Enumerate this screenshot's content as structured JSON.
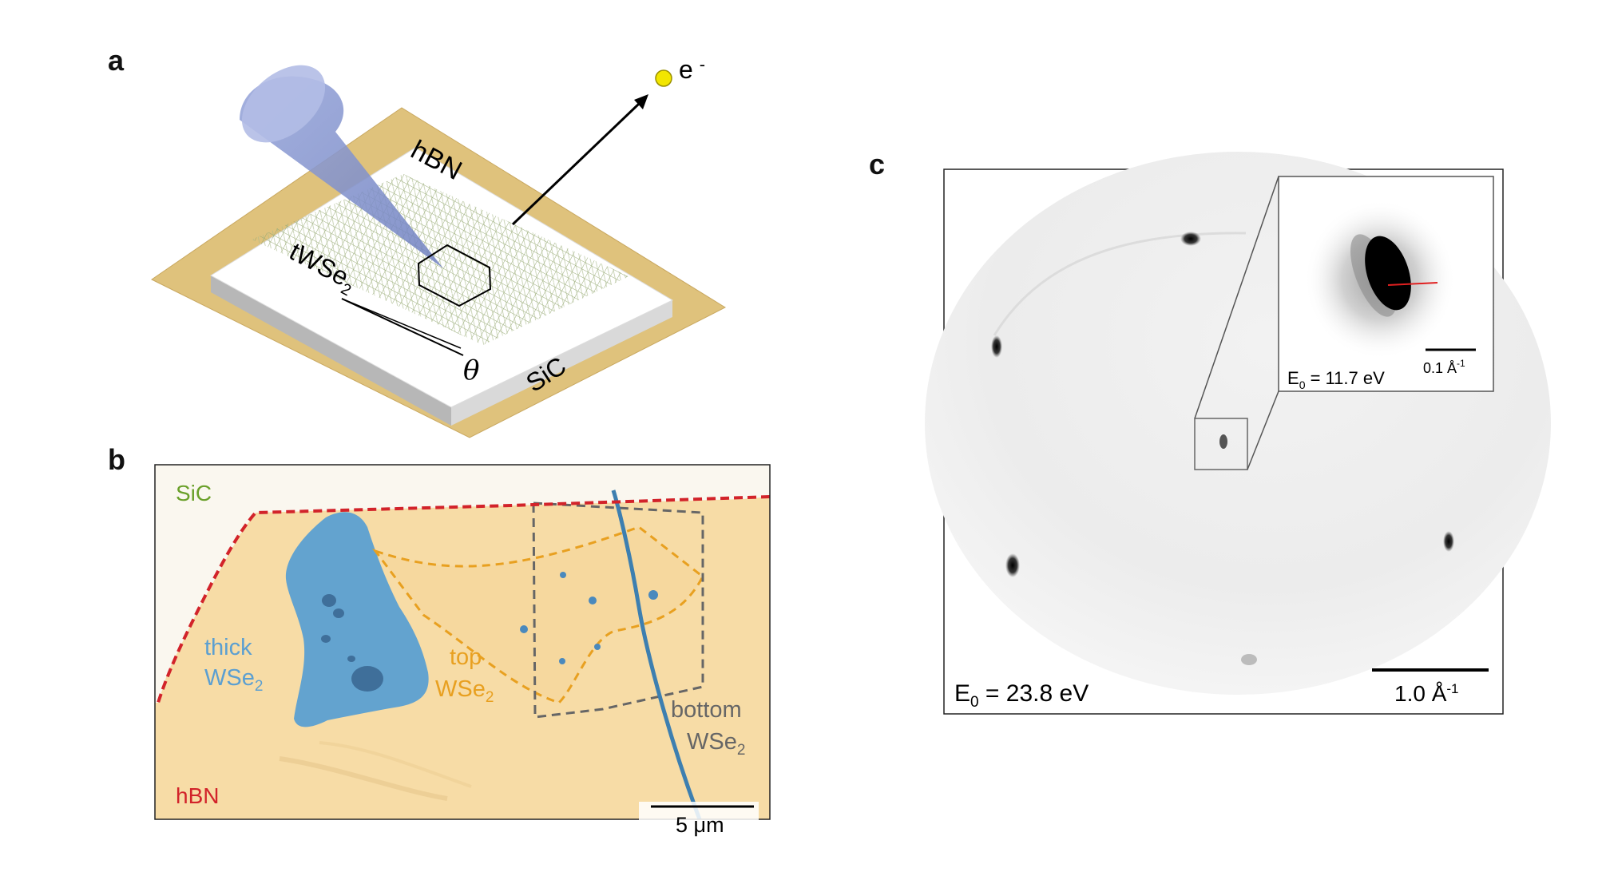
{
  "figure": {
    "panel_a": {
      "letter": "a",
      "labels": {
        "hbn": "hBN",
        "twse2_main": "tWSe",
        "twse2_sub": "2",
        "theta": "θ",
        "sic": "SiC",
        "electron_main": "e",
        "electron_sup": "-"
      },
      "colors": {
        "substrate": "#dfc27c",
        "hbn_top": "#ffffff",
        "lattice": "#8fa36a",
        "cone": "#8b9bd0",
        "electron": "#f2e600"
      }
    },
    "panel_b": {
      "letter": "b",
      "labels": {
        "sic": "SiC",
        "hbn": "hBN",
        "thick_1": "thick",
        "thick_2_main": "WSe",
        "thick_2_sub": "2",
        "top_1": "top",
        "top_2_main": "WSe",
        "top_2_sub": "2",
        "bottom_1": "bottom",
        "bottom_2_main": "WSe",
        "bottom_2_sub": "2",
        "scale": "5 μm"
      },
      "colors": {
        "sic": "#6aa02a",
        "hbn": "#d2232a",
        "thick": "#5b9fd1",
        "top": "#e8a020",
        "bottom": "#666666",
        "background": "#f7dca6"
      }
    },
    "panel_c": {
      "letter": "c",
      "labels": {
        "energy_main": "E",
        "energy_sub": "0",
        "energy_value": " = 23.8 eV",
        "scale": "1.0 Å",
        "scale_sup": "-1",
        "inset_energy_main": "E",
        "inset_energy_sub": "0",
        "inset_energy_value": " = 11.7 eV",
        "inset_scale": "0.1 Å",
        "inset_scale_sup": "-1"
      }
    }
  }
}
